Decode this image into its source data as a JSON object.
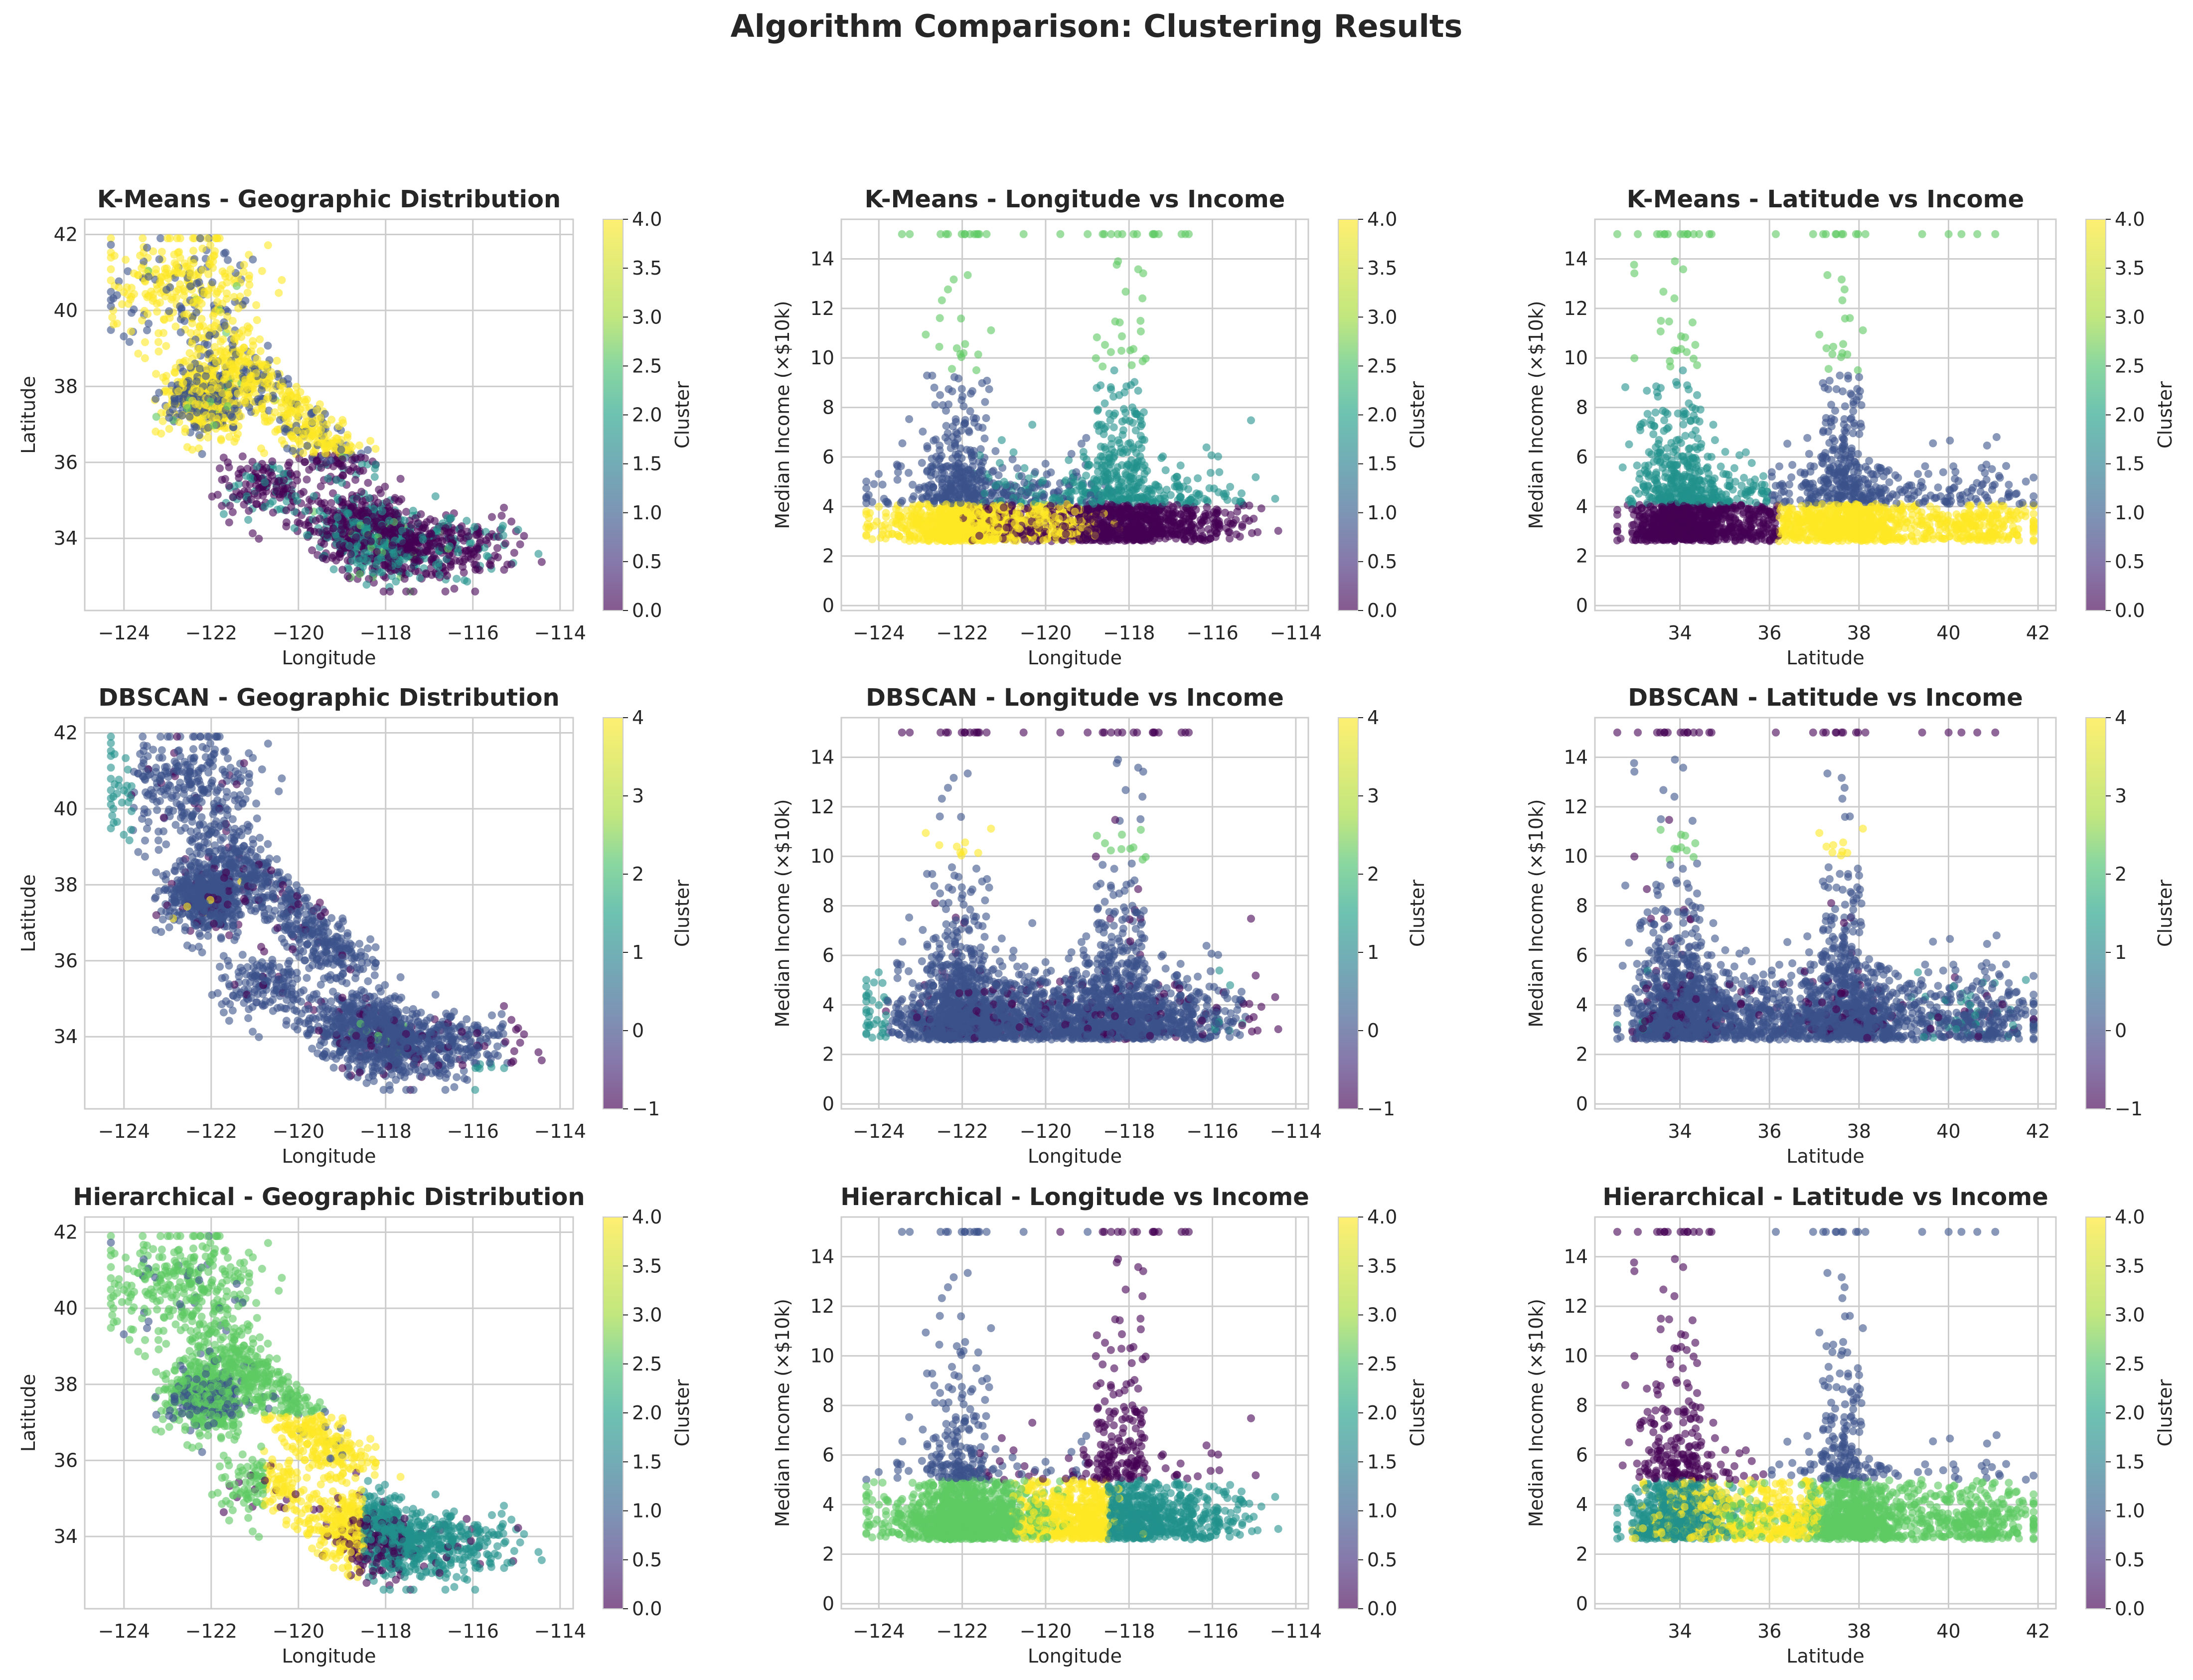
{
  "figure": {
    "title": "Algorithm Comparison: Clustering Results"
  },
  "colormap": [
    "#440154",
    "#3b528b",
    "#21918c",
    "#5ec962",
    "#fde725"
  ],
  "chart_data": [
    {
      "type": "scatter",
      "algorithm": "kmeans",
      "view": "geo",
      "title": "K-Means - Geographic Distribution",
      "xlabel": "Longitude",
      "ylabel": "Latitude",
      "xlim": [
        -124.9,
        -113.7
      ],
      "ylim": [
        32.1,
        42.4
      ],
      "xticks": [
        -124,
        -122,
        -120,
        -118,
        -116,
        -114
      ],
      "yticks": [
        34,
        36,
        38,
        40,
        42
      ],
      "colorbar": {
        "label": "Cluster",
        "range": [
          0,
          4
        ],
        "ticks": [
          0.0,
          0.5,
          1.0,
          1.5,
          2.0,
          2.5,
          3.0,
          3.5,
          4.0
        ]
      }
    },
    {
      "type": "scatter",
      "algorithm": "kmeans",
      "view": "lon_income",
      "title": "K-Means - Longitude vs Income",
      "xlabel": "Longitude",
      "ylabel": "Median Income (×$10k)",
      "xlim": [
        -124.9,
        -113.7
      ],
      "ylim": [
        -0.2,
        15.6
      ],
      "xticks": [
        -124,
        -122,
        -120,
        -118,
        -116,
        -114
      ],
      "yticks": [
        0,
        2,
        4,
        6,
        8,
        10,
        12,
        14
      ],
      "colorbar": {
        "label": "Cluster",
        "range": [
          0,
          4
        ],
        "ticks": [
          0.0,
          0.5,
          1.0,
          1.5,
          2.0,
          2.5,
          3.0,
          3.5,
          4.0
        ]
      }
    },
    {
      "type": "scatter",
      "algorithm": "kmeans",
      "view": "lat_income",
      "title": "K-Means - Latitude vs Income",
      "xlabel": "Latitude",
      "ylabel": "Median Income (×$10k)",
      "xlim": [
        32.1,
        42.4
      ],
      "ylim": [
        -0.2,
        15.6
      ],
      "xticks": [
        34,
        36,
        38,
        40,
        42
      ],
      "yticks": [
        0,
        2,
        4,
        6,
        8,
        10,
        12,
        14
      ],
      "colorbar": {
        "label": "Cluster",
        "range": [
          0,
          4
        ],
        "ticks": [
          0.0,
          0.5,
          1.0,
          1.5,
          2.0,
          2.5,
          3.0,
          3.5,
          4.0
        ]
      }
    },
    {
      "type": "scatter",
      "algorithm": "dbscan",
      "view": "geo",
      "title": "DBSCAN - Geographic Distribution",
      "xlabel": "Longitude",
      "ylabel": "Latitude",
      "xlim": [
        -124.9,
        -113.7
      ],
      "ylim": [
        32.1,
        42.4
      ],
      "xticks": [
        -124,
        -122,
        -120,
        -118,
        -116,
        -114
      ],
      "yticks": [
        34,
        36,
        38,
        40,
        42
      ],
      "colorbar": {
        "label": "Cluster",
        "range": [
          -1,
          4
        ],
        "ticks": [
          -1,
          0,
          1,
          2,
          3,
          4
        ]
      }
    },
    {
      "type": "scatter",
      "algorithm": "dbscan",
      "view": "lon_income",
      "title": "DBSCAN - Longitude vs Income",
      "xlabel": "Longitude",
      "ylabel": "Median Income (×$10k)",
      "xlim": [
        -124.9,
        -113.7
      ],
      "ylim": [
        -0.2,
        15.6
      ],
      "xticks": [
        -124,
        -122,
        -120,
        -118,
        -116,
        -114
      ],
      "yticks": [
        0,
        2,
        4,
        6,
        8,
        10,
        12,
        14
      ],
      "colorbar": {
        "label": "Cluster",
        "range": [
          -1,
          4
        ],
        "ticks": [
          -1,
          0,
          1,
          2,
          3,
          4
        ]
      }
    },
    {
      "type": "scatter",
      "algorithm": "dbscan",
      "view": "lat_income",
      "title": "DBSCAN - Latitude vs Income",
      "xlabel": "Latitude",
      "ylabel": "Median Income (×$10k)",
      "xlim": [
        32.1,
        42.4
      ],
      "ylim": [
        -0.2,
        15.6
      ],
      "xticks": [
        34,
        36,
        38,
        40,
        42
      ],
      "yticks": [
        0,
        2,
        4,
        6,
        8,
        10,
        12,
        14
      ],
      "colorbar": {
        "label": "Cluster",
        "range": [
          -1,
          4
        ],
        "ticks": [
          -1,
          0,
          1,
          2,
          3,
          4
        ]
      }
    },
    {
      "type": "scatter",
      "algorithm": "hier",
      "view": "geo",
      "title": "Hierarchical - Geographic Distribution",
      "xlabel": "Longitude",
      "ylabel": "Latitude",
      "xlim": [
        -124.9,
        -113.7
      ],
      "ylim": [
        32.1,
        42.4
      ],
      "xticks": [
        -124,
        -122,
        -120,
        -118,
        -116,
        -114
      ],
      "yticks": [
        34,
        36,
        38,
        40,
        42
      ],
      "colorbar": {
        "label": "Cluster",
        "range": [
          0,
          4
        ],
        "ticks": [
          0.0,
          0.5,
          1.0,
          1.5,
          2.0,
          2.5,
          3.0,
          3.5,
          4.0
        ]
      }
    },
    {
      "type": "scatter",
      "algorithm": "hier",
      "view": "lon_income",
      "title": "Hierarchical - Longitude vs Income",
      "xlabel": "Longitude",
      "ylabel": "Median Income (×$10k)",
      "xlim": [
        -124.9,
        -113.7
      ],
      "ylim": [
        -0.2,
        15.6
      ],
      "xticks": [
        -124,
        -122,
        -120,
        -118,
        -116,
        -114
      ],
      "yticks": [
        0,
        2,
        4,
        6,
        8,
        10,
        12,
        14
      ],
      "colorbar": {
        "label": "Cluster",
        "range": [
          0,
          4
        ],
        "ticks": [
          0.0,
          0.5,
          1.0,
          1.5,
          2.0,
          2.5,
          3.0,
          3.5,
          4.0
        ]
      }
    },
    {
      "type": "scatter",
      "algorithm": "hier",
      "view": "lat_income",
      "title": "Hierarchical - Latitude vs Income",
      "xlabel": "Latitude",
      "ylabel": "Median Income (×$10k)",
      "xlim": [
        32.1,
        42.4
      ],
      "ylim": [
        -0.2,
        15.6
      ],
      "xticks": [
        34,
        36,
        38,
        40,
        42
      ],
      "yticks": [
        0,
        2,
        4,
        6,
        8,
        10,
        12,
        14
      ],
      "colorbar": {
        "label": "Cluster",
        "range": [
          0,
          4
        ],
        "ticks": [
          0.0,
          0.5,
          1.0,
          1.5,
          2.0,
          2.5,
          3.0,
          3.5,
          4.0
        ]
      }
    }
  ]
}
